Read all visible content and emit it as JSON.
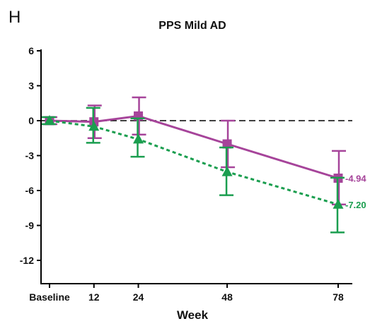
{
  "panel_label": "H",
  "chart_data": {
    "type": "line",
    "title": "PPS Mild AD",
    "xlabel": "Week",
    "ylabel": "",
    "categories": [
      "Baseline",
      "12",
      "24",
      "48",
      "78"
    ],
    "x": [
      0,
      12,
      24,
      48,
      78
    ],
    "ylim": [
      -14,
      6
    ],
    "yticks": [
      "6",
      "3",
      "0",
      "-3",
      "-6",
      "-9",
      "-12"
    ],
    "yticks_values": [
      6,
      3,
      0,
      -3,
      -6,
      -9,
      -12
    ],
    "reference_line": 0,
    "series": [
      {
        "color": "#a6449a",
        "marker": "square",
        "line_style": "solid",
        "values": [
          0,
          -0.1,
          0.4,
          -2.0,
          -4.94
        ],
        "error_low": [
          -0.3,
          -1.5,
          -1.2,
          -4.0,
          -7.2
        ],
        "error_high": [
          0.3,
          1.3,
          2.0,
          0.0,
          -2.6
        ],
        "end_label": "-4.94"
      },
      {
        "color": "#1a9e4f",
        "marker": "triangle",
        "line_style": "dashed",
        "values": [
          0,
          -0.5,
          -1.6,
          -4.4,
          -7.2
        ],
        "error_low": [
          -0.3,
          -1.9,
          -3.1,
          -6.4,
          -9.6
        ],
        "error_high": [
          0.3,
          1.1,
          0.2,
          -2.3,
          -4.9
        ],
        "end_label": "-7.20"
      }
    ],
    "grid": false,
    "legend": "none"
  }
}
